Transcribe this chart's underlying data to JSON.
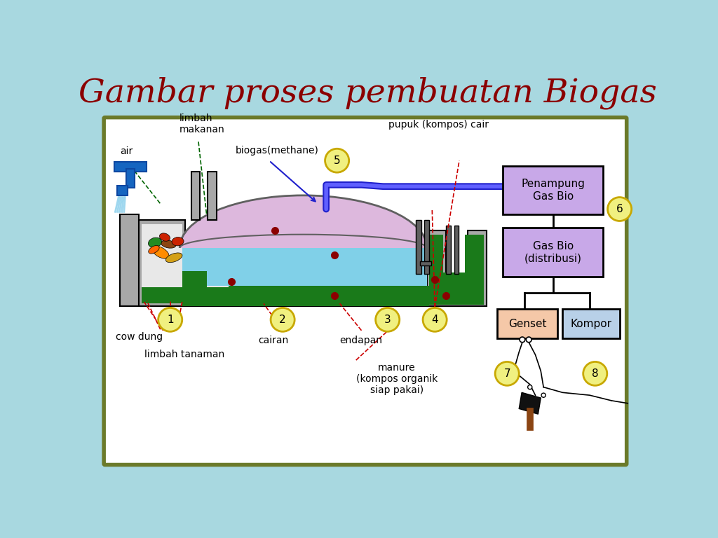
{
  "title": "Gambar proses pembuatan Biogas",
  "title_color": "#8B0000",
  "title_fontsize": 34,
  "bg_color": "#A8D8E0",
  "panel_bg": "#FFFFFF",
  "panel_border": "#6B7A2A",
  "labels": {
    "air": "air",
    "limbah_makanan": "limbah\nmakanan",
    "biogas": "biogas(methane)",
    "pupuk": "pupuk (kompos) cair",
    "cow_dung": "cow dung",
    "limbah_tanaman": "limbah tanaman",
    "cairan": "cairan",
    "endapan": "endapan",
    "manure": "manure\n(kompos organik\nsiap pakai)",
    "penampung": "Penampung\nGas Bio",
    "gas_bio": "Gas Bio\n(distribusi)",
    "genset": "Genset",
    "kompor": "Kompor"
  },
  "box_penampung_color": "#C8A8E8",
  "box_gasbio_color": "#C8A8E8",
  "box_genset_color": "#F5C8A8",
  "box_kompor_color": "#B8D0E8",
  "circle_color": "#F0F080",
  "circle_edge": "#C8A800",
  "dome_color": "#DDB8DD",
  "water_color": "#80D0E8",
  "green_dark": "#1A7A1A",
  "green_mid": "#228B22",
  "gray_base": "#A8A8A8",
  "gray_dark": "#606060",
  "black": "#000000",
  "blue_pipe": "#2020CC",
  "blue_light": "#6060FF",
  "red_dashed": "#CC0000",
  "green_dashed": "#006400",
  "brown": "#8B4513"
}
